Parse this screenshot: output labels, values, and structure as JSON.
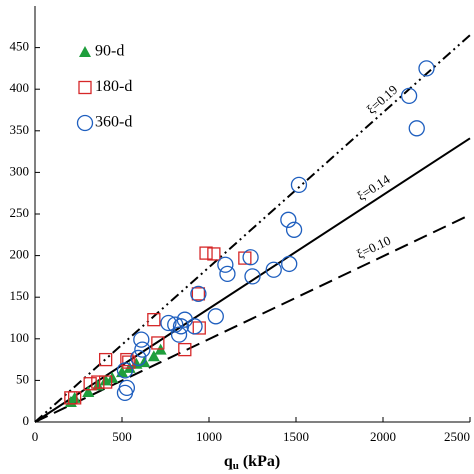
{
  "chart_data": {
    "type": "scatter",
    "x_label": "q",
    "x_label_sub": "u",
    "x_label_rest": " (kPa)",
    "xlim": [
      0,
      2500
    ],
    "xticks": [
      0,
      500,
      1000,
      1500,
      2000,
      2500
    ],
    "ylim": [
      0,
      500
    ],
    "yticks": [
      0,
      50,
      100,
      150,
      200,
      250,
      300,
      350,
      400,
      450
    ],
    "series": [
      {
        "name": "90-d",
        "marker": "triangle",
        "color": "#1e9e3c",
        "x": [
          206,
          228,
          306,
          361,
          406,
          444,
          500,
          544,
          583,
          628,
          683,
          722
        ],
        "values": [
          24,
          29,
          36,
          44,
          50,
          53,
          60,
          65,
          70,
          72,
          79,
          87
        ]
      },
      {
        "name": "180-d",
        "marker": "square",
        "color": "#d62728",
        "x": [
          206,
          228,
          317,
          361,
          406,
          406,
          528,
          539,
          683,
          706,
          861,
          939,
          944,
          983,
          1028,
          1206
        ],
        "values": [
          29,
          29,
          46,
          48,
          48,
          75,
          75,
          72,
          123,
          95,
          87,
          154,
          113,
          203,
          202,
          197
        ]
      },
      {
        "name": "360-d",
        "marker": "circle",
        "color": "#1f5fbf",
        "x": [
          517,
          528,
          517,
          594,
          617,
          611,
          767,
          806,
          839,
          861,
          828,
          917,
          939,
          1039,
          1106,
          1094,
          1239,
          1250,
          1372,
          1461,
          1456,
          1489,
          1517,
          2150,
          2194,
          2250
        ],
        "values": [
          35,
          41,
          62,
          77,
          87,
          99,
          119,
          117,
          115,
          123,
          105,
          115,
          154,
          127,
          178,
          189,
          198,
          175,
          183,
          190,
          243,
          231,
          285,
          392,
          353,
          425
        ]
      }
    ],
    "ref_lines": [
      {
        "label": "ξ=0.19",
        "style": "dashdotdot",
        "x": [
          0,
          2500
        ],
        "y": [
          0,
          465
        ]
      },
      {
        "label": "ξ=0.14",
        "style": "solid",
        "x": [
          0,
          2500
        ],
        "y": [
          0,
          341
        ]
      },
      {
        "label": "ξ=0.10",
        "style": "dashed",
        "x": [
          0,
          2500
        ],
        "y": [
          0,
          249
        ]
      }
    ],
    "legend": "upper left"
  }
}
